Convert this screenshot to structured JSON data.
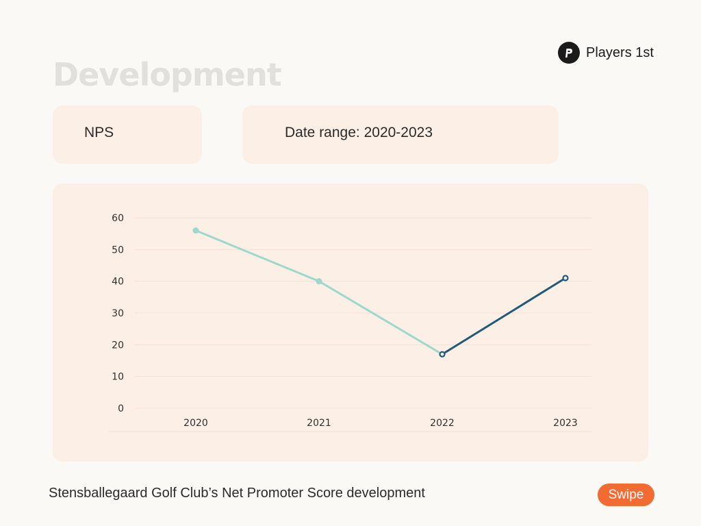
{
  "brand": {
    "name": "Players 1st",
    "logo_icon": "p-logo-icon"
  },
  "page": {
    "title": "Development"
  },
  "filters": {
    "metric": "NPS",
    "date_range_label": "Date range:",
    "date_range_value": "2020-2023"
  },
  "caption": "Stensballegaard Golf Club’s Net Promoter Score development",
  "swipe_label": "Swipe",
  "colors": {
    "background": "#fbf9f5",
    "card": "#fcefe6",
    "line_light": "#9cd9cb",
    "line_dark": "#1f5a78",
    "accent": "#f26b32"
  },
  "chart_data": {
    "type": "line",
    "title": "",
    "xlabel": "",
    "ylabel": "",
    "categories": [
      "2020",
      "2021",
      "2022",
      "2023"
    ],
    "values": [
      56,
      40,
      17,
      41
    ],
    "ylim": [
      0,
      60
    ],
    "yticks": [
      0,
      10,
      20,
      30,
      40,
      50,
      60
    ],
    "grid": true,
    "legend": "none",
    "highlight_from_index": 2
  }
}
